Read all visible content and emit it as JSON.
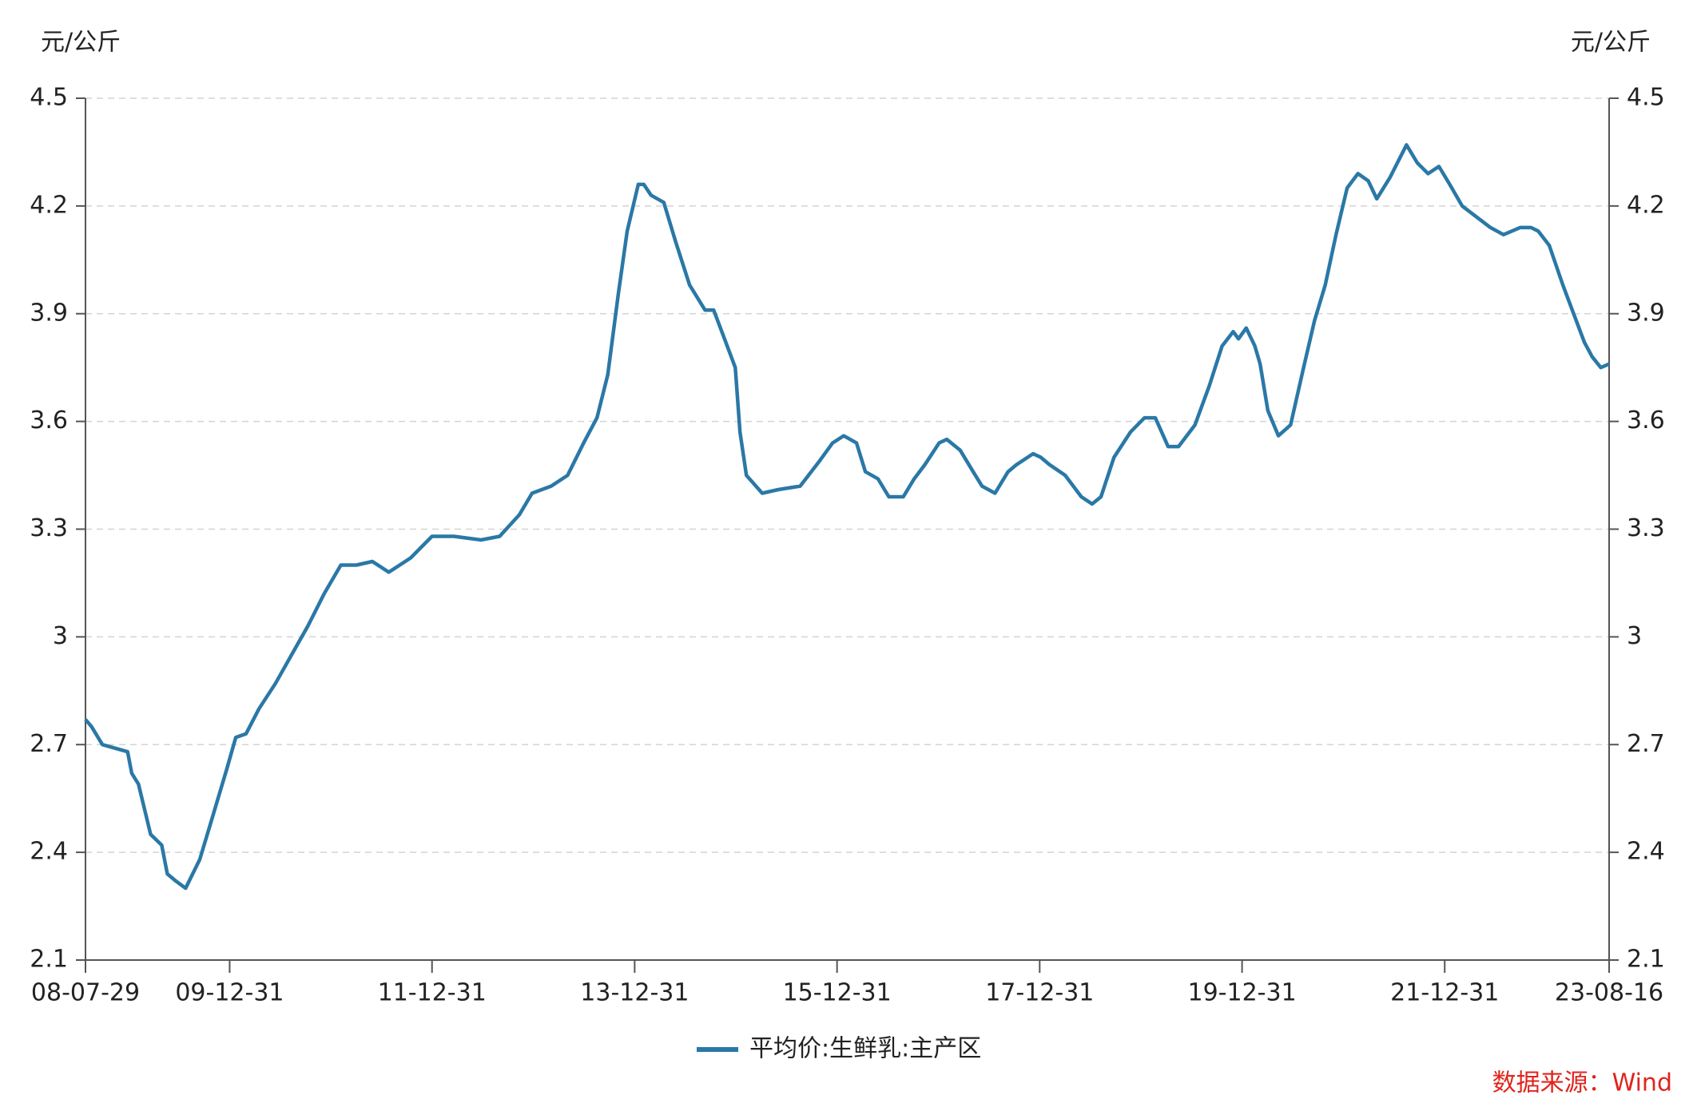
{
  "chart_data": {
    "type": "line",
    "y_label": "元/公斤",
    "y2_label": "元/公斤",
    "source": "数据来源：Wind",
    "x": [
      "08-07-29",
      "08-08-20",
      "08-09-28",
      "08-12-28",
      "09-01-12",
      "09-02-05",
      "09-03-21",
      "09-04-30",
      "09-05-20",
      "09-06-20",
      "09-07-25",
      "09-09-14",
      "09-10-23",
      "09-12-20",
      "10-01-22",
      "10-02-28",
      "10-04-16",
      "10-06-14",
      "10-08-04",
      "10-10-09",
      "10-12-07",
      "11-02-05",
      "11-04-02",
      "11-05-30",
      "11-07-28",
      "11-10-15",
      "11-12-31",
      "12-03-19",
      "12-06-25",
      "12-08-31",
      "12-11-10",
      "12-12-26",
      "13-03-05",
      "13-05-03",
      "13-06-30",
      "13-08-17",
      "13-09-25",
      "13-11-03",
      "13-12-04",
      "14-01-13",
      "14-02-02",
      "14-02-28",
      "14-04-15",
      "14-05-28",
      "14-07-17",
      "14-09-11",
      "14-10-12",
      "14-11-20",
      "14-12-29",
      "15-01-15",
      "15-02-07",
      "15-04-05",
      "15-06-02",
      "15-08-20",
      "15-10-29",
      "15-12-15",
      "16-01-24",
      "16-03-10",
      "16-04-11",
      "16-05-27",
      "16-07-05",
      "16-08-26",
      "16-10-04",
      "16-11-12",
      "17-01-02",
      "17-01-30",
      "17-03-19",
      "17-05-05",
      "17-06-06",
      "17-07-23",
      "17-09-08",
      "17-10-09",
      "17-12-07",
      "18-01-04",
      "18-02-04",
      "18-04-02",
      "18-05-30",
      "18-07-08",
      "18-08-09",
      "18-09-25",
      "18-11-23",
      "19-01-13",
      "19-02-21",
      "19-04-08",
      "19-05-16",
      "19-07-14",
      "19-09-04",
      "19-10-20",
      "19-11-29",
      "19-12-18",
      "20-01-15",
      "20-02-15",
      "20-03-05",
      "20-04-02",
      "20-05-10",
      "20-06-23",
      "20-08-09",
      "20-09-17",
      "20-10-26",
      "20-12-04",
      "21-01-13",
      "21-02-21",
      "21-03-30",
      "21-04-30",
      "21-06-17",
      "21-08-15",
      "21-09-23",
      "21-11-01",
      "21-12-10",
      "22-01-18",
      "22-03-04",
      "22-04-24",
      "22-06-14",
      "22-07-31",
      "22-09-29",
      "22-11-07",
      "22-12-03",
      "23-01-12",
      "23-03-02",
      "23-04-10",
      "23-05-19",
      "23-06-16",
      "23-07-17",
      "23-08-16"
    ],
    "series": [
      {
        "name": "平均价:生鲜乳:主产区",
        "color": "#2a78a6",
        "values": [
          2.77,
          2.75,
          2.7,
          2.68,
          2.62,
          2.59,
          2.45,
          2.42,
          2.34,
          2.32,
          2.3,
          2.38,
          2.48,
          2.63,
          2.72,
          2.73,
          2.8,
          2.87,
          2.94,
          3.03,
          3.12,
          3.2,
          3.2,
          3.21,
          3.18,
          3.22,
          3.28,
          3.28,
          3.27,
          3.28,
          3.34,
          3.4,
          3.42,
          3.45,
          3.54,
          3.61,
          3.73,
          3.96,
          4.13,
          4.26,
          4.26,
          4.23,
          4.21,
          4.1,
          3.98,
          3.91,
          3.91,
          3.83,
          3.75,
          3.57,
          3.45,
          3.4,
          3.41,
          3.42,
          3.49,
          3.54,
          3.56,
          3.54,
          3.46,
          3.44,
          3.39,
          3.39,
          3.44,
          3.48,
          3.54,
          3.55,
          3.52,
          3.46,
          3.42,
          3.4,
          3.46,
          3.48,
          3.51,
          3.5,
          3.48,
          3.45,
          3.39,
          3.37,
          3.39,
          3.5,
          3.57,
          3.61,
          3.61,
          3.53,
          3.53,
          3.59,
          3.7,
          3.81,
          3.85,
          3.83,
          3.86,
          3.81,
          3.76,
          3.63,
          3.56,
          3.59,
          3.75,
          3.88,
          3.98,
          4.12,
          4.25,
          4.29,
          4.27,
          4.22,
          4.28,
          4.37,
          4.32,
          4.29,
          4.31,
          4.26,
          4.2,
          4.17,
          4.14,
          4.12,
          4.14,
          4.14,
          4.13,
          4.09,
          3.98,
          3.9,
          3.82,
          3.78,
          3.75,
          3.76
        ]
      }
    ],
    "xlim": [
      "08-07-29",
      "23-08-16"
    ],
    "xticks": [
      "08-07-29",
      "09-12-31",
      "11-12-31",
      "13-12-31",
      "15-12-31",
      "17-12-31",
      "19-12-31",
      "21-12-31",
      "23-08-16"
    ],
    "ylim": [
      2.1,
      4.5
    ],
    "yticks": [
      2.1,
      2.4,
      2.7,
      3,
      3.3,
      3.6,
      3.9,
      4.2,
      4.5
    ],
    "y2lim": [
      2.1,
      4.5
    ],
    "y2ticks": [
      2.1,
      2.4,
      2.7,
      3,
      3.3,
      3.6,
      3.9,
      4.2,
      4.5
    ],
    "grid": true,
    "legend": "bottom"
  }
}
